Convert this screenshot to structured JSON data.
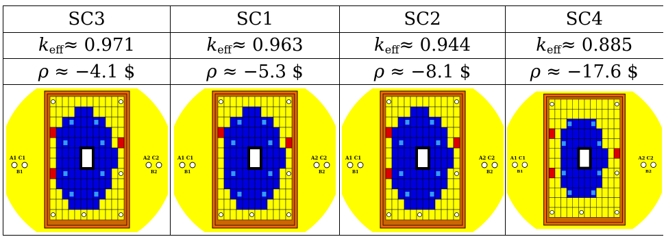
{
  "table": {
    "columns": [
      {
        "name": "SC3",
        "keff_symbol": "k",
        "keff_sub": "eff",
        "keff_relation": "≈",
        "keff_value": "0.971",
        "rho_symbol": "ρ",
        "rho_relation": "≈",
        "rho_value": "−4.1 $",
        "side_red": 2
      },
      {
        "name": "SC1",
        "keff_symbol": "k",
        "keff_sub": "eff",
        "keff_relation": "≈",
        "keff_value": "0.963",
        "rho_symbol": "ρ",
        "rho_relation": "≈",
        "rho_value": "−5.3 $",
        "side_red": 1
      },
      {
        "name": "SC2",
        "keff_symbol": "k",
        "keff_sub": "eff",
        "keff_relation": "≈",
        "keff_value": "0.944",
        "rho_symbol": "ρ",
        "rho_relation": "≈",
        "rho_value": "−8.1 $",
        "side_red": 2
      },
      {
        "name": "SC4",
        "keff_symbol": "k",
        "keff_sub": "eff",
        "keff_relation": "≈",
        "keff_value": "0.885",
        "rho_symbol": "ρ",
        "rho_relation": "≈",
        "rho_value": "−17.6 $",
        "side_red": 3
      }
    ]
  },
  "diagram": {
    "detector_labels": {
      "left_top": "A1  C1",
      "left_bottom": "B1",
      "right_top": "A2  C2",
      "right_bottom": "B2"
    },
    "colors": {
      "pool": "#ffff00",
      "outer_frame": "#ff6600",
      "inner_frame": "#cc6600",
      "grid_cell": "#ffff00",
      "fuel": "#0000dd",
      "fuel_label": "#3399ff",
      "control": "#dd0000",
      "center": "#ffffff",
      "grid_line": "#000000"
    }
  }
}
